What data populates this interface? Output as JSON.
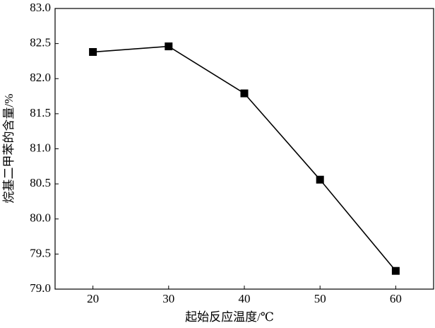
{
  "chart_data": {
    "type": "line",
    "x_label": "起始反应温度/℃",
    "y_label": "烷基二甲苯的含量/%",
    "x": [
      20,
      30,
      40,
      50,
      60
    ],
    "series": [
      {
        "color": "#000000",
        "values": [
          82.38,
          82.46,
          81.79,
          80.56,
          79.26
        ]
      }
    ],
    "xlim": [
      15,
      65
    ],
    "xticks": [
      20,
      30,
      40,
      50,
      60
    ],
    "ylim": [
      79.0,
      83.0
    ],
    "yticks": [
      {
        "value": 79.0,
        "label": "79.0"
      },
      {
        "value": 79.5,
        "label": "79.5"
      },
      {
        "value": 80.0,
        "label": "80.0"
      },
      {
        "value": 80.5,
        "label": "80.5"
      },
      {
        "value": 81.0,
        "label": "81.0"
      },
      {
        "value": 81.5,
        "label": "81.5"
      },
      {
        "value": 82.0,
        "label": "82.0"
      },
      {
        "value": 82.5,
        "label": "82.5"
      },
      {
        "value": 83.0,
        "label": "83.0"
      }
    ],
    "grid": false
  }
}
